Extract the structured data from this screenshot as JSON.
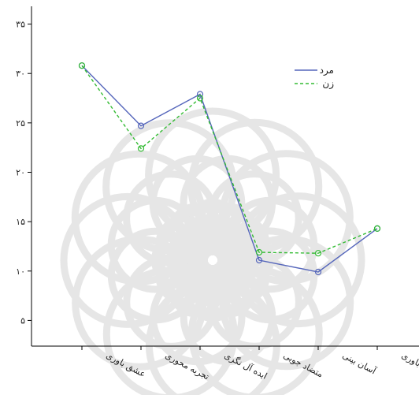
{
  "chart_data": {
    "type": "line",
    "categories": [
      "عشق باوری",
      "تجربه محوری",
      "ایده آل نگری",
      "متضاد جویی",
      "آسان بینی",
      "خوش باوری"
    ],
    "y_ticks": [
      "۵",
      "۱۰",
      "۱۵",
      "۲۰",
      "۲۵",
      "۳۰",
      "۳۵"
    ],
    "y_tick_values": [
      5,
      10,
      15,
      20,
      25,
      30,
      35
    ],
    "ylim": [
      2.4,
      36.8
    ],
    "grid": false,
    "legend_position": "top-right",
    "series": [
      {
        "name": "مرد",
        "values": [
          30.8,
          24.7,
          27.9,
          11.1,
          9.9,
          14.3
        ],
        "color": "#5566bb",
        "dash": "solid",
        "marker": "open-circle"
      },
      {
        "name": "زن",
        "values": [
          30.8,
          22.4,
          27.5,
          11.9,
          11.8,
          14.3
        ],
        "color": "#33bb33",
        "dash": "dashed",
        "marker": "open-circle"
      }
    ]
  }
}
